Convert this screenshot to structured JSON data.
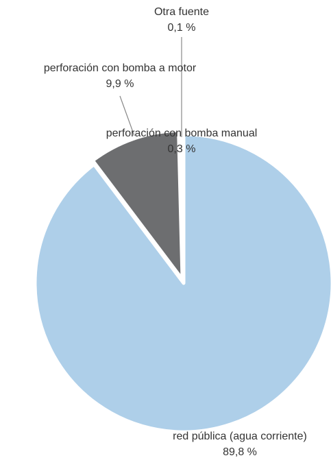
{
  "chart_data": {
    "type": "pie",
    "categories": [
      "red pública (agua corriente)",
      "perforación con bomba a motor",
      "perforación con bomba manual",
      "Otra fuente"
    ],
    "values": [
      89.8,
      9.9,
      0.3,
      0.1
    ],
    "value_labels": [
      "89,8 %",
      "9,9 %",
      "0,3 %",
      "0,1 %"
    ],
    "colors": [
      "#aecfe9",
      "#6d6e70",
      "#a7a9ac",
      "#d9d9d9"
    ]
  }
}
